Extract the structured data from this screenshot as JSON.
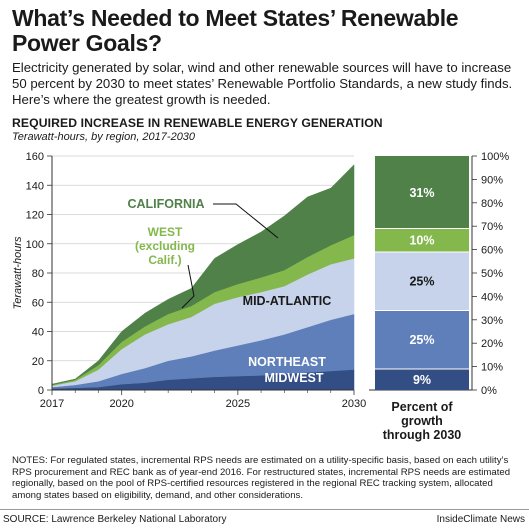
{
  "title": "What’s Needed to Meet States’ Renewable Power Goals?",
  "subtitle": "Electricity generated by solar, wind and other renewable sources will have to increase 50 percent by 2030  to meet states’ Renewable Portfolio Standards, a new study finds. Here’s where the greatest growth is needed.",
  "chart_heading": "REQUIRED INCREASE IN RENEWABLE ENERGY GENERATION",
  "chart_subheading": "Terawatt-hours, by region, 2017-2030",
  "notes": "NOTES: For regulated states, incremental RPS needs are estimated on a utility-specific basis, based on each utility’s RPS procurement and REC bank as of year-end 2016. For restructured states, incremental RPS needs are estimated regionally, based on the pool of RPS-certified resources registered in the regional REC tracking system, allocated among states based on eligibility, demand, and other considerations.",
  "source": "SOURCE: Lawrence Berkeley National Laboratory",
  "credit": "InsideClimate News",
  "colors": {
    "midwest": "#334d85",
    "northeast": "#5f7fba",
    "mid_atlantic": "#c6d3ea",
    "west": "#84b84c",
    "california": "#4f8148"
  },
  "chart_data": [
    {
      "type": "area",
      "stacked": true,
      "ylabel": "Terawatt-hours",
      "ylim": [
        0,
        160
      ],
      "yticks": [
        "0",
        "20",
        "40",
        "60",
        "80",
        "100",
        "120",
        "140",
        "160"
      ],
      "xticks": [
        "2017",
        "2020",
        "2025",
        "2030"
      ],
      "x": [
        2017,
        2018,
        2019,
        2020,
        2021,
        2022,
        2023,
        2024,
        2025,
        2026,
        2027,
        2028,
        2029,
        2030
      ],
      "series": [
        {
          "name": "MIDWEST",
          "label": "MIDWEST",
          "color": "#334d85",
          "values": [
            1,
            1.5,
            2,
            4,
            5,
            7,
            8,
            9,
            9.5,
            10,
            11,
            12,
            13,
            14
          ]
        },
        {
          "name": "NORTHEAST",
          "label": "NORTHEAST",
          "color": "#5f7fba",
          "values": [
            1,
            2,
            4,
            7,
            10,
            13,
            15,
            18,
            21,
            24,
            27,
            31,
            35,
            38
          ]
        },
        {
          "name": "MID-ATLANTIC",
          "label": "MID-ATLANTIC",
          "color": "#c6d3ea",
          "values": [
            1,
            2.5,
            8,
            17,
            23,
            25,
            27,
            32,
            33,
            33,
            33,
            36,
            38,
            38
          ]
        },
        {
          "name": "WEST (excluding Calif.)",
          "label_lines": [
            "WEST",
            "(excluding",
            "Calif.)"
          ],
          "color": "#84b84c",
          "values": [
            0.5,
            1,
            3,
            5,
            5.5,
            7,
            7.5,
            8,
            9,
            10,
            11,
            12,
            13,
            16
          ]
        },
        {
          "name": "CALIFORNIA",
          "label": "CALIFORNIA",
          "color": "#4f8148",
          "values": [
            0.5,
            0.5,
            3,
            7,
            9,
            10,
            12,
            23,
            27,
            31,
            37,
            41,
            39,
            48
          ]
        }
      ]
    },
    {
      "type": "bar",
      "stacked_percent": true,
      "xlabel_lines": [
        "Percent of",
        "growth",
        "through 2030"
      ],
      "ylim": [
        0,
        100
      ],
      "yticks": [
        "0%",
        "10%",
        "20%",
        "30%",
        "40%",
        "50%",
        "60%",
        "70%",
        "80%",
        "90%",
        "100%"
      ],
      "segments": [
        {
          "region": "MIDWEST",
          "value": 9,
          "label": "9%",
          "color": "#334d85"
        },
        {
          "region": "NORTHEAST",
          "value": 25,
          "label": "25%",
          "color": "#5f7fba"
        },
        {
          "region": "MID-ATLANTIC",
          "value": 25,
          "label": "25%",
          "color": "#c6d3ea"
        },
        {
          "region": "WEST (excluding Calif.)",
          "value": 10,
          "label": "10%",
          "color": "#84b84c"
        },
        {
          "region": "CALIFORNIA",
          "value": 31,
          "label": "31%",
          "color": "#4f8148"
        }
      ]
    }
  ]
}
